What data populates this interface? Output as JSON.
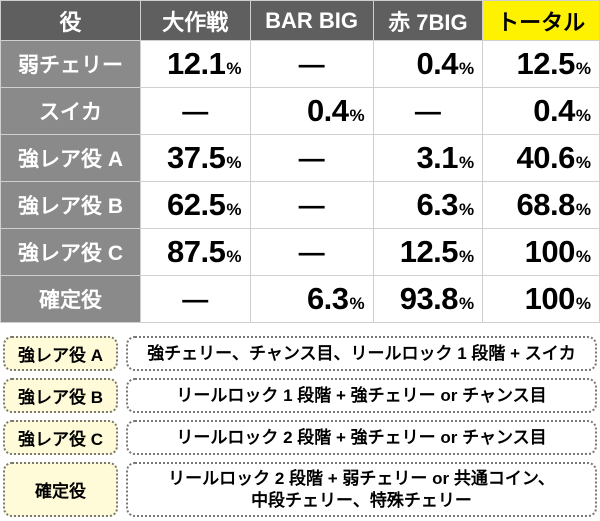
{
  "table": {
    "headers": [
      "役",
      "大作戦",
      "BAR BIG",
      "赤 7BIG",
      "トータル"
    ],
    "rows": [
      {
        "label": "弱チェリー",
        "cells": [
          "12.1",
          "",
          "0.4",
          "12.5"
        ]
      },
      {
        "label": "スイカ",
        "cells": [
          "",
          "0.4",
          "",
          "0.4"
        ]
      },
      {
        "label": "強レア役 A",
        "cells": [
          "37.5",
          "",
          "3.1",
          "40.6"
        ]
      },
      {
        "label": "強レア役 B",
        "cells": [
          "62.5",
          "",
          "6.3",
          "68.8"
        ]
      },
      {
        "label": "強レア役 C",
        "cells": [
          "87.5",
          "",
          "12.5",
          "100"
        ]
      },
      {
        "label": "確定役",
        "cells": [
          "",
          "6.3",
          "93.8",
          "100"
        ]
      }
    ],
    "dash": "—",
    "unit": "%"
  },
  "legend": [
    {
      "key": "強レア役 A",
      "desc": "強チェリー、チャンス目、リールロック 1 段階 + スイカ"
    },
    {
      "key": "強レア役 B",
      "desc": "リールロック 1 段階 + 強チェリー or チャンス目"
    },
    {
      "key": "強レア役 C",
      "desc": "リールロック 2 段階 + 強チェリー or チャンス目"
    },
    {
      "key": "確定役",
      "desc": "リールロック 2 段階 + 弱チェリー or 共通コイン、\n中段チェリー、特殊チェリー"
    }
  ],
  "colors": {
    "header": "#5f5f5f",
    "total_header": "#fff200",
    "row_label": "#8a8a8a",
    "legend_key": "#fffbd8"
  }
}
